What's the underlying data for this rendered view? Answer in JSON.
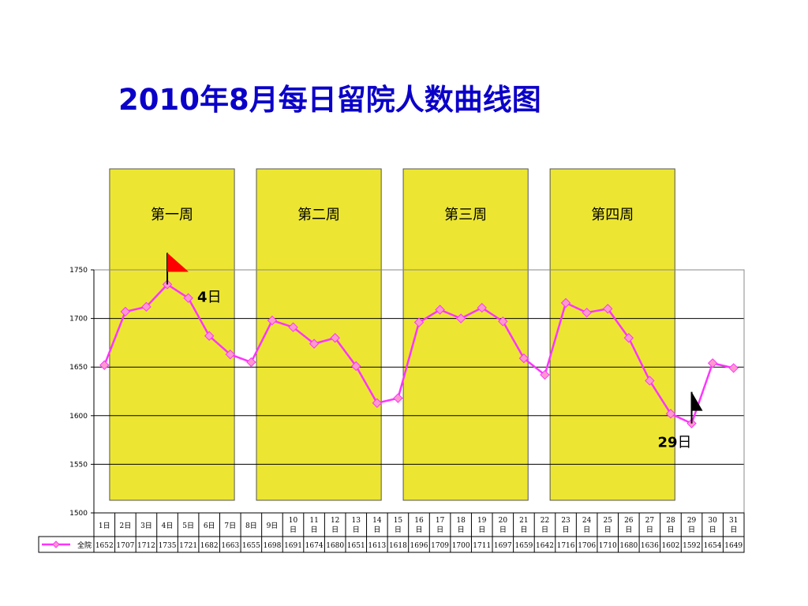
{
  "title": "2010年8月每日留院人数曲线图",
  "colors": {
    "title": "#0b00c8",
    "week_band": "#ece632",
    "series": "#ff33ff",
    "marker_fill": "#ff99cc",
    "flag_start": "#ff0000",
    "flag_end": "#000000"
  },
  "chart_data": {
    "type": "line",
    "title": "2010年8月每日留院人数曲线图",
    "categories": [
      "1日",
      "2日",
      "3日",
      "4日",
      "5日",
      "6日",
      "7日",
      "8日",
      "9日",
      "10日",
      "11日",
      "12日",
      "13日",
      "14日",
      "15日",
      "16日",
      "17日",
      "18日",
      "19日",
      "20日",
      "21日",
      "22日",
      "23日",
      "24日",
      "25日",
      "26日",
      "27日",
      "28日",
      "29日",
      "30日",
      "31日"
    ],
    "series": [
      {
        "name": "全院",
        "values": [
          1652,
          1707,
          1712,
          1735,
          1721,
          1682,
          1663,
          1655,
          1698,
          1691,
          1674,
          1680,
          1651,
          1613,
          1618,
          1696,
          1709,
          1700,
          1711,
          1697,
          1659,
          1642,
          1716,
          1706,
          1710,
          1680,
          1636,
          1602,
          1592,
          1654,
          1649
        ]
      }
    ],
    "ylim": [
      1500,
      1750
    ],
    "yticks": [
      "1500",
      "1550",
      "1600",
      "1650",
      "1700",
      "1750"
    ],
    "grid": true,
    "weeks": [
      {
        "label": "第一周",
        "from": 1,
        "to": 7
      },
      {
        "label": "第二周",
        "from": 8,
        "to": 14
      },
      {
        "label": "第三周",
        "from": 15,
        "to": 21
      },
      {
        "label": "第四周",
        "from": 22,
        "to": 28
      }
    ],
    "annotations": [
      {
        "num": "4",
        "unit": "日",
        "day": 4,
        "flag": "start"
      },
      {
        "num": "29",
        "unit": "日",
        "day": 29,
        "flag": "end"
      }
    ]
  }
}
